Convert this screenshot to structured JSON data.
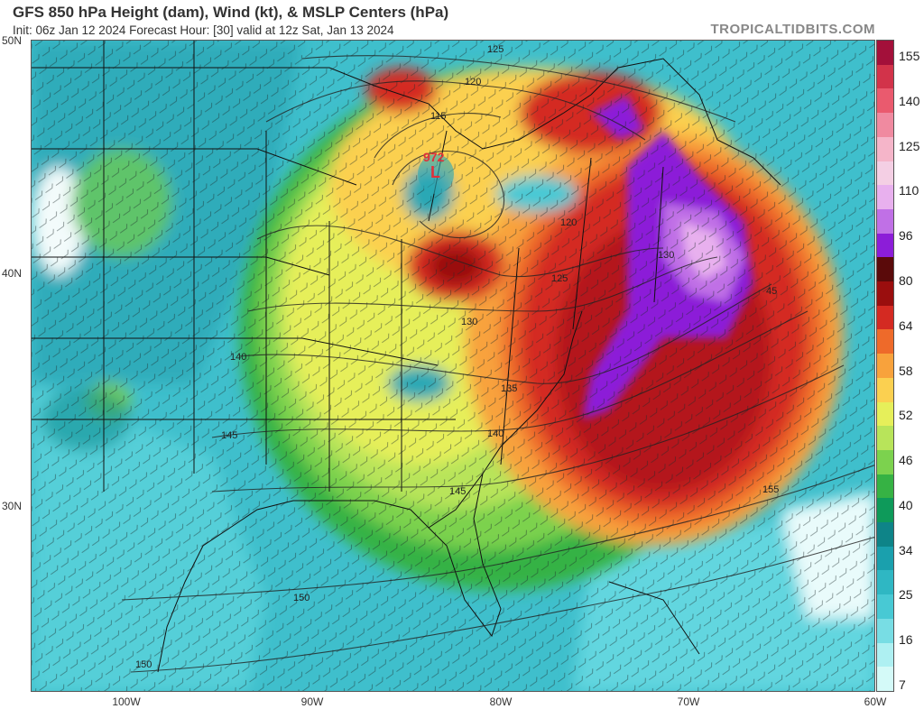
{
  "header": {
    "title": "GFS 850 hPa Height (dam), Wind (kt), & MSLP Centers (hPa)",
    "subtitle": "Init: 06z Jan 12 2024   Forecast Hour: [30]   valid at 12z Sat, Jan 13 2024",
    "brand": "TROPICALTIDBITS.COM"
  },
  "axes": {
    "lat_labels": [
      "50N",
      "40N",
      "30N"
    ],
    "lon_labels": [
      "100W",
      "90W",
      "80W",
      "70W",
      "60W"
    ]
  },
  "contours": [
    "125",
    "120",
    "115",
    "120",
    "125",
    "130",
    "135",
    "140",
    "145",
    "150",
    "155",
    "140",
    "145",
    "150",
    "45",
    "130"
  ],
  "low_center": {
    "pressure": "972",
    "symbol": "L",
    "color": "#e0303a"
  },
  "colorbar": {
    "labels": [
      "155",
      "140",
      "125",
      "110",
      "96",
      "80",
      "64",
      "58",
      "52",
      "46",
      "40",
      "34",
      "25",
      "16",
      "7"
    ],
    "colors": [
      "#a3103a",
      "#d2334a",
      "#ea5a6e",
      "#f08aa0",
      "#f5b5c9",
      "#f4cfe4",
      "#e8b0ee",
      "#c070e6",
      "#8c1dd8",
      "#5a0a0a",
      "#9a0e0e",
      "#d42a22",
      "#ee6a2a",
      "#f8a23c",
      "#fbd050",
      "#e6ef5a",
      "#b8e45a",
      "#7cd24e",
      "#36b244",
      "#0e9a5a",
      "#0e8488",
      "#1aa0ad",
      "#2fb7c3",
      "#48c9d4",
      "#78dde4",
      "#aef0f2",
      "#d4faf8"
    ]
  }
}
